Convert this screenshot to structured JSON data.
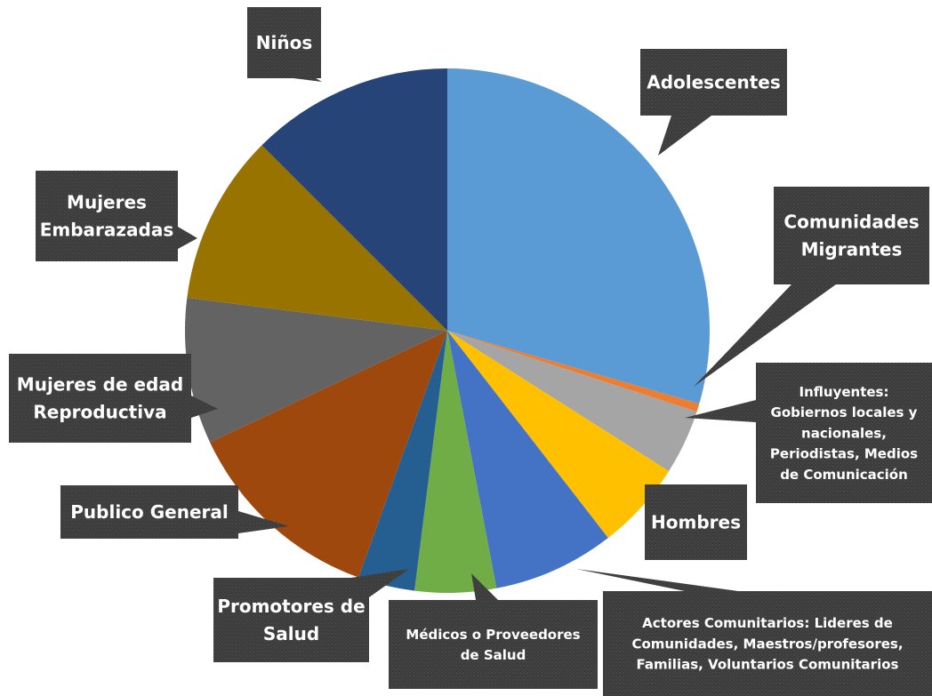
{
  "chart_data": {
    "type": "pie",
    "title": "",
    "start_angle_deg": 0,
    "direction": "clockwise",
    "slices": [
      {
        "label": "Adolescentes",
        "value": 29.5,
        "color": "#5b9bd5"
      },
      {
        "label": "Comunidades Migrantes",
        "value": 0.5,
        "color": "#ed7d31"
      },
      {
        "label": "Influyentes: Gobiernos locales y nacionales, Periodistas, Medios de Comunicación",
        "value": 4,
        "color": "#a5a5a5"
      },
      {
        "label": "Hombres",
        "value": 5.5,
        "color": "#ffc000"
      },
      {
        "label": "Actores Comunitarios: Lideres de Comunidades, Maestros/profesores, Familias, Voluntarios Comunitarios",
        "value": 7.5,
        "color": "#4472c4"
      },
      {
        "label": "Médicos o Proveedores de Salud",
        "value": 5,
        "color": "#70ad47"
      },
      {
        "label": "Promotores de Salud",
        "value": 3.5,
        "color": "#255e91"
      },
      {
        "label": "Publico General",
        "value": 12.5,
        "color": "#9e480e"
      },
      {
        "label": "Mujeres de edad Reproductiva",
        "value": 9,
        "color": "#636363"
      },
      {
        "label": "Mujeres Embarazadas",
        "value": 10.5,
        "color": "#997300"
      },
      {
        "label": "Niños",
        "value": 12.5,
        "color": "#264478"
      }
    ],
    "callouts": [
      {
        "lines": [
          "Adolescentes"
        ]
      },
      {
        "lines": [
          "Comunidades",
          "Migrantes"
        ]
      },
      {
        "lines": [
          "Influyentes:",
          "Gobiernos locales y",
          "nacionales,",
          "Periodistas, Medios",
          "de Comunicación"
        ]
      },
      {
        "lines": [
          "Hombres"
        ]
      },
      {
        "lines": [
          "Actores Comunitarios: Lideres de",
          "Comunidades, Maestros/profesores,",
          "Familias, Voluntarios Comunitarios"
        ]
      },
      {
        "lines": [
          "Médicos o Proveedores",
          "de Salud"
        ]
      },
      {
        "lines": [
          "Promotores de",
          "Salud"
        ]
      },
      {
        "lines": [
          "Publico General"
        ]
      },
      {
        "lines": [
          "Mujeres de edad",
          "Reproductiva"
        ]
      },
      {
        "lines": [
          "Mujeres",
          "Embarazadas"
        ]
      },
      {
        "lines": [
          "Niños"
        ]
      }
    ],
    "callout_style": {
      "background": "#3b3b3b",
      "text_color": "#ffffff",
      "leader_color": "#3b3b3b"
    },
    "legend": "none"
  }
}
